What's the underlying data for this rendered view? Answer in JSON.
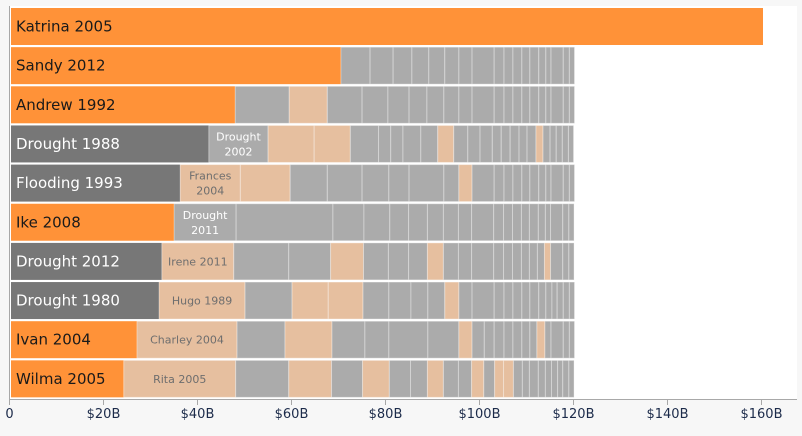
{
  "chart_data": {
    "type": "bar",
    "orientation": "horizontal",
    "stacked": true,
    "xlim": [
      0,
      165
    ],
    "x_ticks": [
      0,
      20,
      40,
      60,
      80,
      100,
      120,
      140,
      160
    ],
    "x_tick_labels": [
      "0",
      "$20B",
      "$40B",
      "$60B",
      "$80B",
      "$100B",
      "$120B",
      "$140B",
      "$160B"
    ],
    "grid": false,
    "colors": {
      "hurricane_primary": "#FF9238",
      "drought_primary": "#777777",
      "hurricane_other": "#E6BF9F",
      "drought_other": "#ABABAB",
      "axis_text": "#1c2b4a"
    },
    "rows": [
      {
        "label": "Katrina 2005",
        "kind": "h",
        "segments": [
          {
            "v": 160,
            "k": "h",
            "label": "Katrina 2005"
          }
        ]
      },
      {
        "label": "Sandy 2012",
        "kind": "h",
        "segments": [
          {
            "v": 70.2,
            "k": "h",
            "label": "Sandy 2012"
          }
        ],
        "rest": [
          6.2,
          4.9,
          4.0,
          3.6,
          3.4,
          3.0,
          2.8,
          4.7,
          2.1,
          1.9,
          1.9,
          1.7,
          1.9,
          1.5,
          1.1,
          2.6,
          1.3,
          1.1
        ],
        "rest_kinds": "dddddddddddddddddd"
      },
      {
        "label": "Andrew 1992",
        "kind": "h",
        "segments": [
          {
            "v": 47.7,
            "k": "h",
            "label": "Andrew 1992"
          }
        ],
        "rest": [
          11.5,
          8.1,
          7.4,
          5.5,
          4.5,
          3.8,
          3.6,
          3.2,
          2.8,
          4.7,
          2.1,
          1.9,
          1.9,
          1.7,
          1.9,
          1.5,
          1.1,
          2.6,
          1.3,
          1.1
        ],
        "rest_kinds": "dhdddddddddddddddddd"
      },
      {
        "label": "Drought 1988",
        "kind": "d",
        "segments": [
          {
            "v": 42.1,
            "k": "d",
            "label": "Drought 1988"
          },
          {
            "v": 12.6,
            "k": "d",
            "label": "Drought 2002"
          }
        ],
        "rest": [
          9.8,
          7.7,
          6.0,
          2.6,
          2.6,
          3.8,
          3.6,
          3.4,
          3.0,
          2.6,
          2.6,
          1.9,
          1.9,
          1.9,
          1.7,
          1.9,
          1.5,
          1.5,
          1.3,
          1.3,
          1.3,
          1.1
        ],
        "rest_kinds": "hhdddddhddddddddhddddd"
      },
      {
        "label": "Flooding 1993",
        "kind": "d",
        "segments": [
          {
            "v": 36.0,
            "k": "d",
            "label": "Flooding 1993"
          },
          {
            "v": 12.8,
            "k": "h",
            "label": "Frances 2004"
          }
        ],
        "rest": [
          10.6,
          7.9,
          7.4,
          5.7,
          4.3,
          7.4,
          3.2,
          2.8,
          4.7,
          2.1,
          1.9,
          1.9,
          1.7,
          1.9,
          1.5,
          1.1,
          2.6,
          1.3,
          1.1
        ],
        "rest_kinds": "hddddddhddddddddddd"
      },
      {
        "label": "Ike 2008",
        "kind": "h",
        "segments": [
          {
            "v": 34.7,
            "k": "h",
            "label": "Ike 2008"
          },
          {
            "v": 13.2,
            "k": "d",
            "label": "Drought 2011"
          }
        ],
        "rest": [
          20.6,
          6.6,
          5.5,
          4.0,
          4.0,
          3.4,
          3.2,
          2.8,
          4.7,
          2.1,
          1.9,
          1.9,
          1.7,
          1.9,
          1.5,
          1.1,
          2.6,
          1.3,
          1.1
        ],
        "rest_kinds": "ddddddddddddddddddd"
      },
      {
        "label": "Drought 2012",
        "kind": "d",
        "segments": [
          {
            "v": 32.1,
            "k": "d",
            "label": "Drought 2012"
          },
          {
            "v": 15.3,
            "k": "h",
            "label": "Irene 2011"
          }
        ],
        "rest": [
          11.7,
          8.9,
          7.0,
          5.3,
          4.3,
          4.0,
          3.4,
          3.2,
          2.8,
          4.7,
          2.1,
          1.9,
          1.9,
          1.7,
          1.7,
          1.5,
          1.3,
          2.6,
          1.3,
          1.1
        ],
        "rest_kinds": "ddhdddhdddddddddhddd"
      },
      {
        "label": "Drought 1980",
        "kind": "d",
        "segments": [
          {
            "v": 31.5,
            "k": "d",
            "label": "Drought 1980"
          },
          {
            "v": 18.3,
            "k": "h",
            "label": "Hugo 1989"
          }
        ],
        "rest": [
          10.0,
          7.7,
          7.4,
          5.5,
          4.7,
          3.6,
          3.6,
          3.0,
          2.8,
          4.7,
          2.1,
          1.9,
          1.9,
          1.7,
          1.9,
          1.5,
          1.3,
          1.1,
          1.3,
          1.3,
          1.1
        ],
        "rest_kinds": "dhhddddhddddddddddddd"
      },
      {
        "label": "Ivan 2004",
        "kind": "h",
        "segments": [
          {
            "v": 26.8,
            "k": "h",
            "label": "Ivan 2004"
          },
          {
            "v": 21.3,
            "k": "h",
            "label": "Charley 2004"
          }
        ],
        "rest": [
          10.2,
          10.0,
          7.0,
          5.1,
          8.3,
          6.6,
          2.8,
          2.6,
          2.1,
          2.1,
          1.9,
          1.9,
          1.7,
          1.5,
          1.7,
          1.3,
          2.6,
          1.3,
          1.1
        ],
        "rest_kinds": "dhddddhdddddddhdddd"
      },
      {
        "label": "Wilma 2005",
        "kind": "h",
        "segments": [
          {
            "v": 24.0,
            "k": "h",
            "label": "Wilma 2005"
          },
          {
            "v": 23.8,
            "k": "h",
            "label": "Rita 2005"
          }
        ],
        "rest": [
          11.3,
          9.1,
          6.6,
          5.7,
          4.5,
          3.6,
          3.4,
          3.2,
          2.8,
          2.6,
          2.3,
          1.9,
          2.1,
          1.9,
          1.5,
          1.9,
          1.5,
          1.3,
          1.3,
          1.1,
          1.3,
          1.1
        ],
        "rest_kinds": "dhdhddhddhdhhddddddddd"
      }
    ]
  }
}
